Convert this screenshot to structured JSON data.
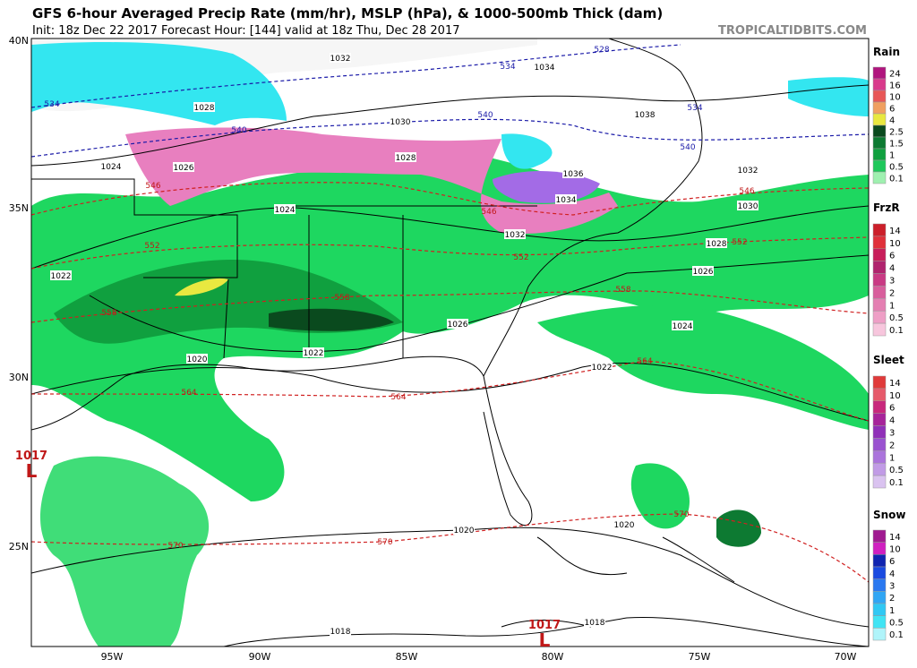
{
  "header": {
    "title": "GFS 6-hour Averaged Precip Rate (mm/hr), MSLP (hPa), & 1000-500mb Thick (dam)",
    "subtitle": "Init: 18z Dec 22 2017   Forecast Hour: [144]   valid at 18z Thu, Dec 28 2017",
    "watermark": "TROPICALTIDBITS.COM"
  },
  "axes": {
    "lat_labels": [
      "40N",
      "35N",
      "30N",
      "25N"
    ],
    "lon_labels": [
      "95W",
      "90W",
      "85W",
      "80W",
      "75W",
      "70W"
    ]
  },
  "legend": [
    {
      "title": "Rain",
      "labels": [
        "24",
        "16",
        "10",
        "6",
        "4",
        "2.5",
        "1.5",
        "1",
        "0.5",
        "0.1"
      ],
      "colors": [
        "#b0157e",
        "#d93a8c",
        "#e85757",
        "#f0a060",
        "#e8e840",
        "#0a4a1e",
        "#0d7a32",
        "#10a03f",
        "#1ec85a",
        "#9ff0b0"
      ]
    },
    {
      "title": "FrzR",
      "labels": [
        "14",
        "10",
        "6",
        "4",
        "3",
        "2",
        "1",
        "0.5",
        "0.1"
      ],
      "colors": [
        "#cc1f2a",
        "#e0303a",
        "#c81e5a",
        "#b0246e",
        "#c93a84",
        "#d85e9c",
        "#e47fb2",
        "#ee9fc6",
        "#f7c6dd"
      ]
    },
    {
      "title": "Sleet",
      "labels": [
        "14",
        "10",
        "6",
        "4",
        "3",
        "2",
        "1",
        "0.5",
        "0.1"
      ],
      "colors": [
        "#e03a3a",
        "#e65a6a",
        "#c8287c",
        "#a7249a",
        "#9030b8",
        "#9a52d0",
        "#ab74dc",
        "#c19be6",
        "#dac3f0"
      ]
    },
    {
      "title": "Snow",
      "labels": [
        "14",
        "10",
        "6",
        "4",
        "3",
        "2",
        "1",
        "0.5",
        "0.1"
      ],
      "colors": [
        "#a01a90",
        "#d020c0",
        "#1024b0",
        "#1a4ae0",
        "#2a78f0",
        "#30a6f4",
        "#30c8f4",
        "#40e4f4",
        "#b0f4fa"
      ]
    }
  ],
  "isobar_labels": [
    "1032",
    "1034",
    "1028",
    "1030",
    "1038",
    "1024",
    "1026",
    "1028",
    "1036",
    "1032",
    "1024",
    "1034",
    "1030",
    "1032",
    "1028",
    "1022",
    "1026",
    "1026",
    "1024",
    "1020",
    "1022",
    "1022",
    "1020",
    "1020",
    "1018",
    "1018"
  ],
  "thickness_labels": [
    "528",
    "534",
    "534",
    "540",
    "534",
    "540",
    "540",
    "546",
    "546",
    "546",
    "552",
    "552",
    "552",
    "558",
    "558",
    "558",
    "564",
    "564",
    "564",
    "570",
    "570",
    "570"
  ],
  "lows": [
    {
      "pressure": "1017",
      "symbol": "L"
    },
    {
      "pressure": "1017",
      "symbol": "L"
    }
  ]
}
